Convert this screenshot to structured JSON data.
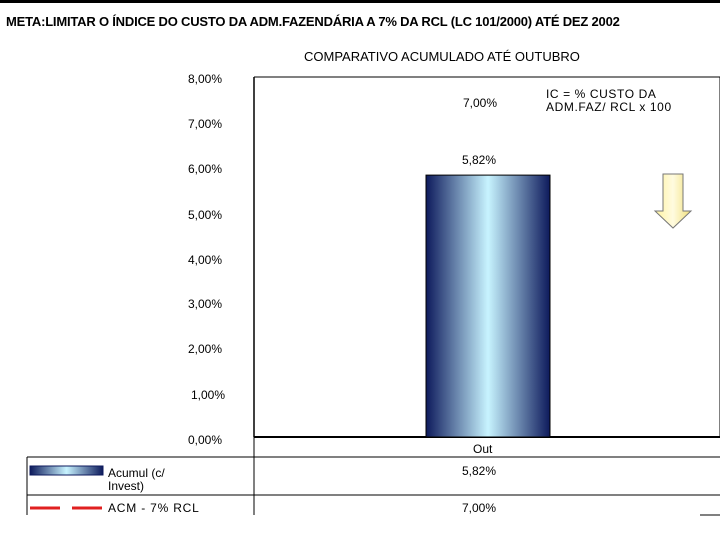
{
  "chart_data": {
    "type": "bar",
    "title": "META:LIMITAR O ÍNDICE DO CUSTO DA ADM.FAZENDÁRIA A 7% DA RCL (LC 101/2000) ATÉ DEZ 2002",
    "subtitle": "COMPARATIVO ACUMULADO ATÉ OUTUBRO",
    "categories": [
      "Out"
    ],
    "series": [
      {
        "name": "Acumul (c/ Invest)",
        "values": [
          5.82
        ],
        "labels": [
          "5,82%"
        ],
        "color": "#1a237e"
      },
      {
        "name": "ACM - 7% RCL",
        "values": [
          7.0
        ],
        "labels": [
          "7,00%"
        ],
        "color": "#e02020"
      }
    ],
    "ylim": [
      0,
      8
    ],
    "yticks": [
      "0,00%",
      "1,00%",
      "2,00%",
      "3,00%",
      "4,00%",
      "5,00%",
      "6,00%",
      "7,00%",
      "8,00%"
    ],
    "annotation": "IC = % CUSTO DA ADM.FAZ/ RCL x 100",
    "target_label": "7,00%",
    "table": {
      "rows": [
        {
          "series": "Acumul (c/ Invest)",
          "value": "5,82%"
        },
        {
          "series": "ACM - 7% RCL",
          "value": "7,00%"
        }
      ]
    }
  }
}
